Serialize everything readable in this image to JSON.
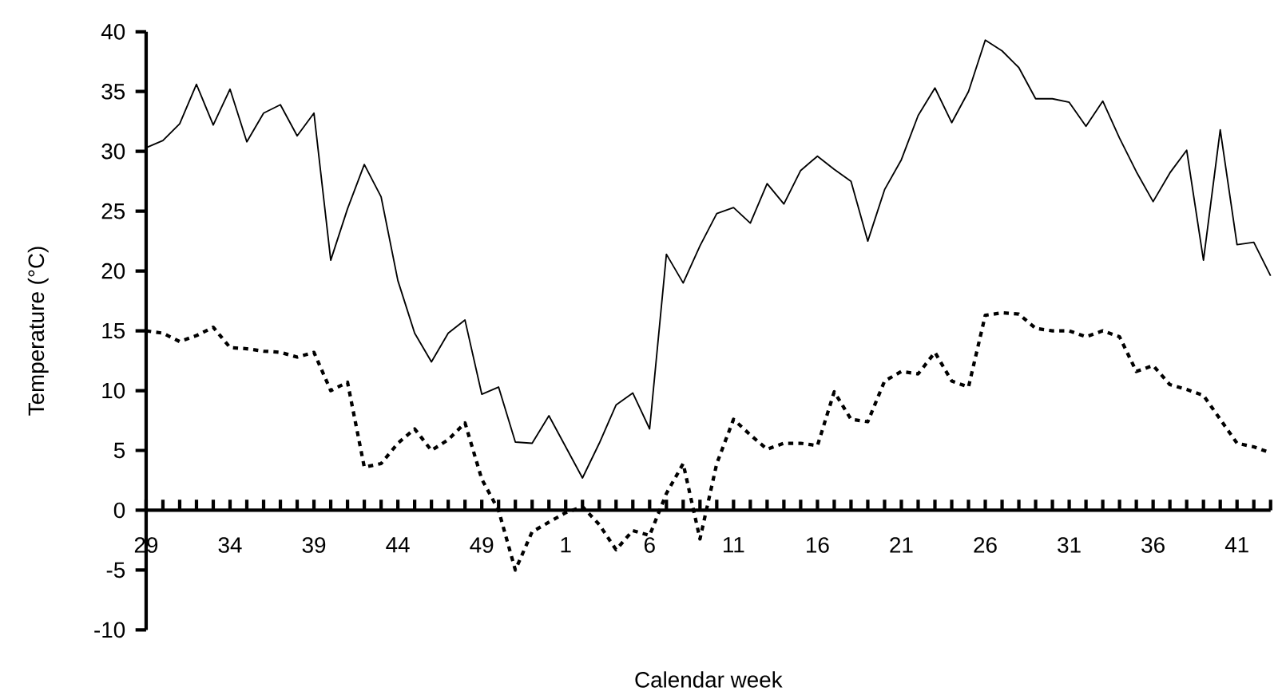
{
  "chart_data": {
    "type": "line",
    "xlabel": "Calendar week",
    "ylabel": "Temperature (°C)",
    "categories": [
      "29",
      null,
      null,
      null,
      null,
      "34",
      null,
      null,
      null,
      null,
      "39",
      null,
      null,
      null,
      null,
      "44",
      null,
      null,
      null,
      null,
      "49",
      null,
      null,
      null,
      null,
      "1",
      null,
      null,
      null,
      null,
      "6",
      null,
      null,
      null,
      null,
      "11",
      null,
      null,
      null,
      null,
      "16",
      null,
      null,
      null,
      null,
      "21",
      null,
      null,
      null,
      null,
      "26",
      null,
      null,
      null,
      null,
      "31",
      null,
      null,
      null,
      null,
      "36",
      null,
      null,
      null,
      null,
      "41",
      null,
      null
    ],
    "series": [
      {
        "color": "#000000",
        "line_style": "solid",
        "values": [
          30.3,
          30.9,
          32.3,
          35.6,
          32.2,
          35.2,
          30.8,
          33.2,
          33.9,
          31.3,
          33.2,
          20.9,
          25.2,
          28.9,
          26.2,
          19.2,
          14.8,
          12.4,
          14.8,
          15.9,
          9.7,
          10.3,
          5.7,
          5.6,
          7.9,
          5.3,
          2.7,
          5.6,
          8.8,
          9.8,
          6.8,
          21.4,
          19.0,
          22.1,
          24.8,
          25.3,
          24.0,
          27.3,
          25.6,
          28.4,
          29.6,
          28.5,
          27.5,
          22.5,
          26.8,
          29.3,
          33.0,
          35.3,
          32.4,
          35.0,
          39.3,
          38.4,
          37.0,
          34.4,
          34.4,
          34.1,
          32.1,
          34.2,
          31.1,
          28.3,
          25.8,
          28.2,
          30.1,
          20.9,
          31.8,
          22.2,
          22.4,
          19.6
        ]
      },
      {
        "color": "#000000",
        "line_style": "dotted",
        "values": [
          15.0,
          14.8,
          14.1,
          14.6,
          15.3,
          13.6,
          13.5,
          13.3,
          13.2,
          12.8,
          13.2,
          10.0,
          10.7,
          3.6,
          3.9,
          5.6,
          6.8,
          5.0,
          5.9,
          7.3,
          2.6,
          0.0,
          -5.0,
          -1.8,
          -1.0,
          -0.2,
          0.3,
          -1.2,
          -3.3,
          -1.7,
          -2.1,
          1.4,
          3.9,
          -2.4,
          3.9,
          7.6,
          6.3,
          5.1,
          5.6,
          5.6,
          5.4,
          9.9,
          7.6,
          7.4,
          10.8,
          11.6,
          11.4,
          13.2,
          10.8,
          10.3,
          16.3,
          16.5,
          16.4,
          15.2,
          15.0,
          15.0,
          14.5,
          15.0,
          14.5,
          11.6,
          12.1,
          10.5,
          10.1,
          9.6,
          7.6,
          5.6,
          5.3,
          4.8
        ]
      }
    ],
    "ylim": [
      -10,
      40
    ],
    "yticks": [
      -10,
      -5,
      0,
      5,
      10,
      15,
      20,
      25,
      30,
      35,
      40
    ],
    "grid": false
  }
}
